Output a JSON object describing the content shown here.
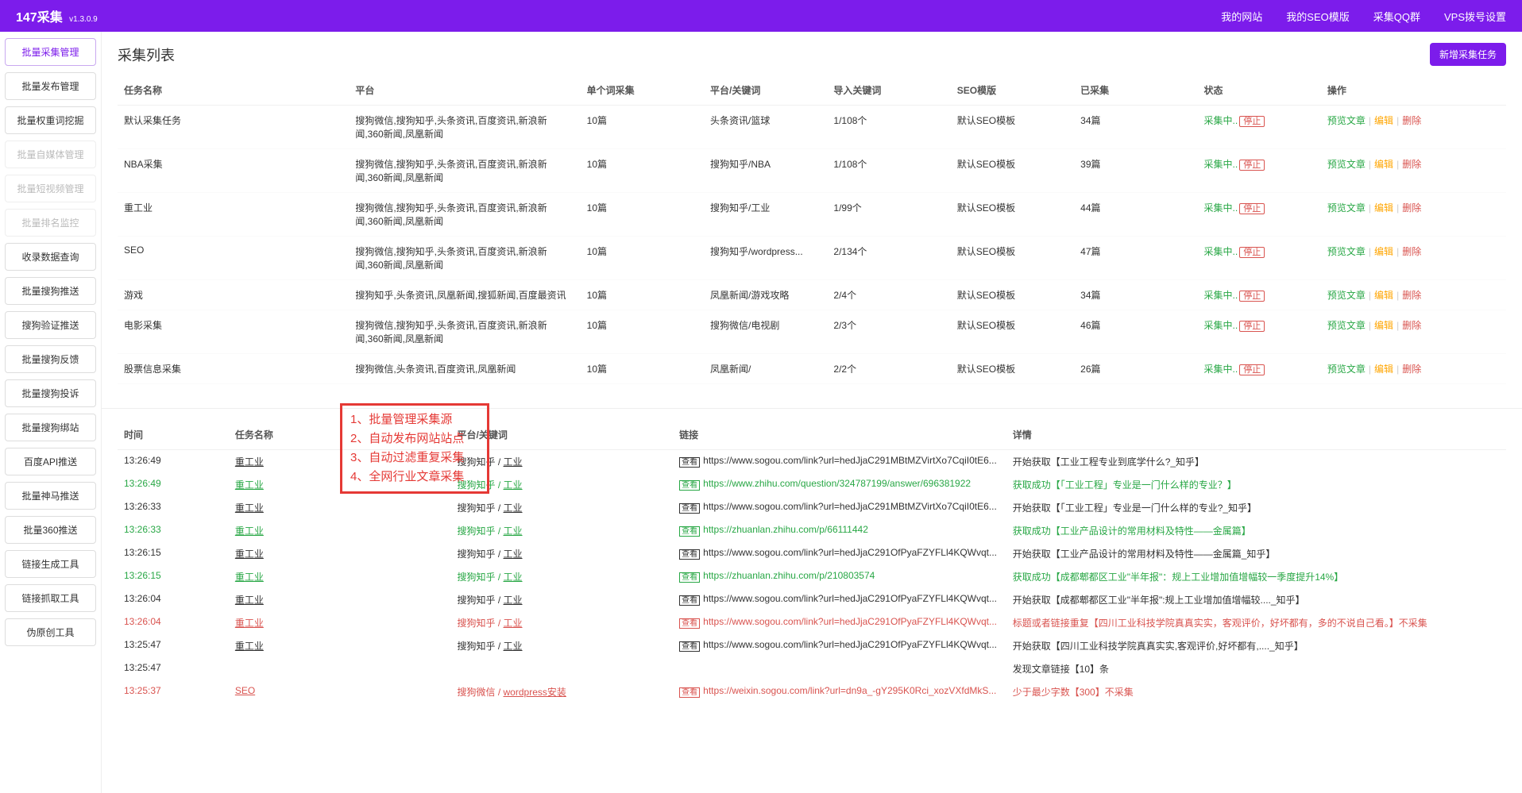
{
  "brand": {
    "name": "147采集",
    "version": "v1.3.0.9"
  },
  "topnav": [
    "我的网站",
    "我的SEO模版",
    "采集QQ群",
    "VPS拨号设置"
  ],
  "sidebar": [
    {
      "label": "批量采集管理",
      "state": "active"
    },
    {
      "label": "批量发布管理",
      "state": ""
    },
    {
      "label": "批量权重词挖掘",
      "state": ""
    },
    {
      "label": "批量自媒体管理",
      "state": "disabled"
    },
    {
      "label": "批量短视频管理",
      "state": "disabled"
    },
    {
      "label": "批量排名监控",
      "state": "disabled"
    },
    {
      "label": "收录数据查询",
      "state": ""
    },
    {
      "label": "批量搜狗推送",
      "state": ""
    },
    {
      "label": "搜狗验证推送",
      "state": ""
    },
    {
      "label": "批量搜狗反馈",
      "state": ""
    },
    {
      "label": "批量搜狗投诉",
      "state": ""
    },
    {
      "label": "批量搜狗绑站",
      "state": ""
    },
    {
      "label": "百度API推送",
      "state": ""
    },
    {
      "label": "批量神马推送",
      "state": ""
    },
    {
      "label": "批量360推送",
      "state": ""
    },
    {
      "label": "链接生成工具",
      "state": ""
    },
    {
      "label": "链接抓取工具",
      "state": ""
    },
    {
      "label": "伪原创工具",
      "state": ""
    }
  ],
  "tasks": {
    "title": "采集列表",
    "addBtn": "新增采集任务",
    "columns": [
      "任务名称",
      "平台",
      "单个词采集",
      "平台/关键词",
      "导入关键词",
      "SEO模版",
      "已采集",
      "状态",
      "操作"
    ],
    "status_run": "采集中..",
    "status_stop": "停止",
    "ops": {
      "preview": "预览文章",
      "edit": "编辑",
      "del": "删除"
    },
    "rows": [
      {
        "name": "默认采集任务",
        "plat": "搜狗微信,搜狗知乎,头条资讯,百度资讯,新浪新闻,360新闻,凤凰新闻",
        "per": "10篇",
        "kw": "头条资讯/篮球",
        "imp": "1/108个",
        "seo": "默认SEO模板",
        "cnt": "34篇"
      },
      {
        "name": "NBA采集",
        "plat": "搜狗微信,搜狗知乎,头条资讯,百度资讯,新浪新闻,360新闻,凤凰新闻",
        "per": "10篇",
        "kw": "搜狗知乎/NBA",
        "imp": "1/108个",
        "seo": "默认SEO模板",
        "cnt": "39篇"
      },
      {
        "name": "重工业",
        "plat": "搜狗微信,搜狗知乎,头条资讯,百度资讯,新浪新闻,360新闻,凤凰新闻",
        "per": "10篇",
        "kw": "搜狗知乎/工业",
        "imp": "1/99个",
        "seo": "默认SEO模板",
        "cnt": "44篇"
      },
      {
        "name": "SEO",
        "plat": "搜狗微信,搜狗知乎,头条资讯,百度资讯,新浪新闻,360新闻,凤凰新闻",
        "per": "10篇",
        "kw": "搜狗知乎/wordpress...",
        "imp": "2/134个",
        "seo": "默认SEO模板",
        "cnt": "47篇"
      },
      {
        "name": "游戏",
        "plat": "搜狗知乎,头条资讯,凤凰新闻,搜狐新闻,百度最资讯",
        "per": "10篇",
        "kw": "凤凰新闻/游戏攻略",
        "imp": "2/4个",
        "seo": "默认SEO模板",
        "cnt": "34篇"
      },
      {
        "name": "电影采集",
        "plat": "搜狗微信,搜狗知乎,头条资讯,百度资讯,新浪新闻,360新闻,凤凰新闻",
        "per": "10篇",
        "kw": "搜狗微信/电视剧",
        "imp": "2/3个",
        "seo": "默认SEO模板",
        "cnt": "46篇"
      },
      {
        "name": "股票信息采集",
        "plat": "搜狗微信,头条资讯,百度资讯,凤凰新闻",
        "per": "10篇",
        "kw": "凤凰新闻/",
        "imp": "2/2个",
        "seo": "默认SEO模板",
        "cnt": "26篇"
      }
    ]
  },
  "log": {
    "columns": [
      "时间",
      "任务名称",
      "平台/关键词",
      "链接",
      "详情"
    ],
    "badge": "查看",
    "rows": [
      {
        "t": "13:26:49",
        "task": "重工业",
        "plat": "搜狗知乎 / ",
        "kw": "工业",
        "link": "https://www.sogou.com/link?url=hedJjaC291MBtMZVirtXo7CqiI0tE6...",
        "detail": "开始获取【工业工程专业到底学什么?_知乎】",
        "cls": "black"
      },
      {
        "t": "13:26:49",
        "task": "重工业",
        "plat": "搜狗知乎 / ",
        "kw": "工业",
        "link": "https://www.zhihu.com/question/324787199/answer/696381922",
        "detail": "获取成功【「工业工程」专业是一门什么样的专业？】",
        "cls": "green"
      },
      {
        "t": "13:26:33",
        "task": "重工业",
        "plat": "搜狗知乎 / ",
        "kw": "工业",
        "link": "https://www.sogou.com/link?url=hedJjaC291MBtMZVirtXo7CqiI0tE6...",
        "detail": "开始获取【「工业工程」专业是一门什么样的专业?_知乎】",
        "cls": "black"
      },
      {
        "t": "13:26:33",
        "task": "重工业",
        "plat": "搜狗知乎 / ",
        "kw": "工业",
        "link": "https://zhuanlan.zhihu.com/p/66111442",
        "detail": "获取成功【工业产品设计的常用材料及特性——金属篇】",
        "cls": "green"
      },
      {
        "t": "13:26:15",
        "task": "重工业",
        "plat": "搜狗知乎 / ",
        "kw": "工业",
        "link": "https://www.sogou.com/link?url=hedJjaC291OfPyaFZYFLl4KQWvqt...",
        "detail": "开始获取【工业产品设计的常用材料及特性——金属篇_知乎】",
        "cls": "black"
      },
      {
        "t": "13:26:15",
        "task": "重工业",
        "plat": "搜狗知乎 / ",
        "kw": "工业",
        "link": "https://zhuanlan.zhihu.com/p/210803574",
        "detail": "获取成功【成都郫都区工业\"半年报\"：规上工业增加值增幅较一季度提升14%】",
        "cls": "green"
      },
      {
        "t": "13:26:04",
        "task": "重工业",
        "plat": "搜狗知乎 / ",
        "kw": "工业",
        "link": "https://www.sogou.com/link?url=hedJjaC291OfPyaFZYFLl4KQWvqt...",
        "detail": "开始获取【成都郫都区工业\"半年报\":规上工业增加值增幅较...._知乎】",
        "cls": "black"
      },
      {
        "t": "13:26:04",
        "task": "重工业",
        "plat": "搜狗知乎 / ",
        "kw": "工业",
        "link": "https://www.sogou.com/link?url=hedJjaC291OfPyaFZYFLl4KQWvqt...",
        "detail": "标题或者链接重复【四川工业科技学院真真实实，客观评价，好坏都有，多的不说自己看。】不采集",
        "cls": "red"
      },
      {
        "t": "13:25:47",
        "task": "重工业",
        "plat": "搜狗知乎 / ",
        "kw": "工业",
        "link": "https://www.sogou.com/link?url=hedJjaC291OfPyaFZYFLl4KQWvqt...",
        "detail": "开始获取【四川工业科技学院真真实实,客观评价,好坏都有,...._知乎】",
        "cls": "black"
      },
      {
        "t": "13:25:47",
        "task": "",
        "plat": "",
        "kw": "",
        "link": "",
        "detail": "发现文章链接【10】条",
        "cls": "black",
        "notask": true
      },
      {
        "t": "13:25:37",
        "task": "SEO",
        "plat": "搜狗微信 / ",
        "kw": "wordpress安装",
        "link": "https://weixin.sogou.com/link?url=dn9a_-gY295K0Rci_xozVXfdMkS...",
        "detail": "少于最少字数【300】不采集",
        "cls": "red"
      }
    ]
  },
  "callout": [
    "1、批量管理采集源",
    "2、自动发布网站站点",
    "3、自动过滤重复采集",
    "4、全网行业文章采集"
  ]
}
